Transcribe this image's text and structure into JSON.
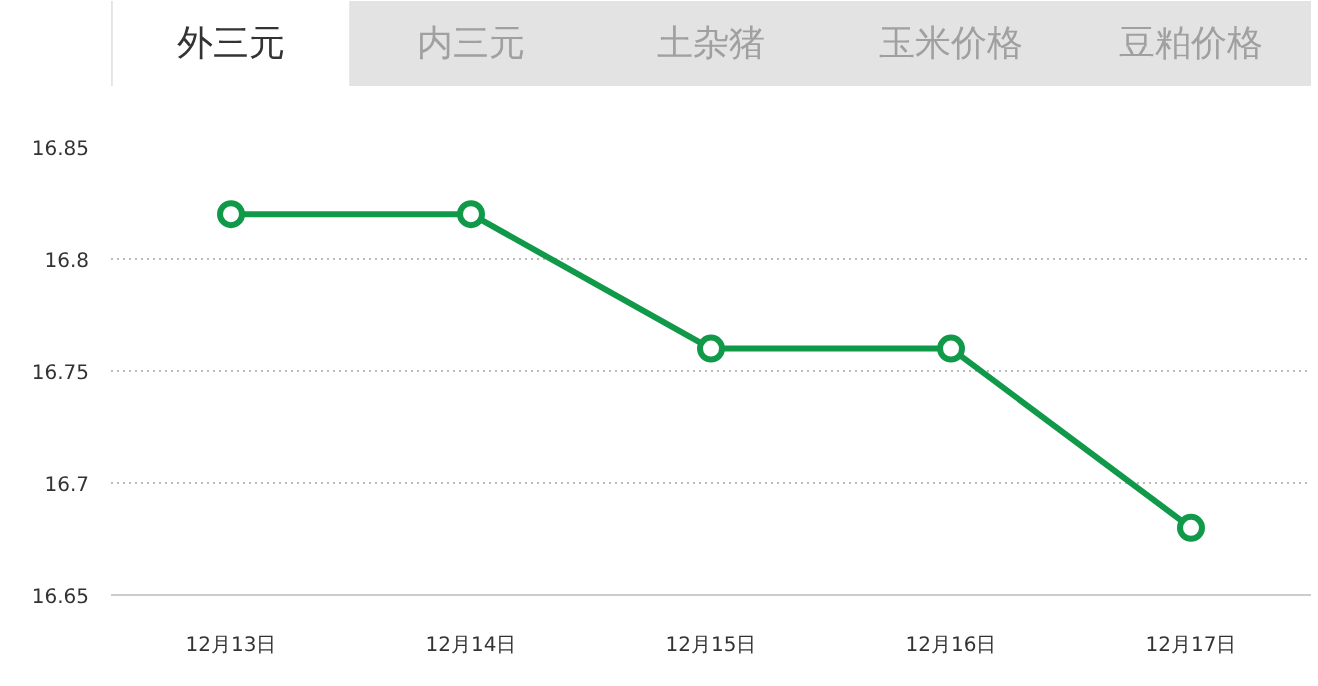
{
  "chart_data": {
    "type": "line",
    "categories": [
      "12月13日",
      "12月14日",
      "12月15日",
      "12月16日",
      "12月17日"
    ],
    "series": [
      {
        "color": "#11994a",
        "values": [
          16.82,
          16.82,
          16.76,
          16.76,
          16.68
        ]
      }
    ],
    "ylim": [
      16.65,
      16.85
    ],
    "yticks": [
      16.65,
      16.7,
      16.75,
      16.8,
      16.85
    ],
    "grid": "y",
    "marker": "circle",
    "line_style": "solid",
    "annotations": [
      "外三元",
      "内三元",
      "土杂猪",
      "玉米价格",
      "豆粕价格"
    ]
  }
}
